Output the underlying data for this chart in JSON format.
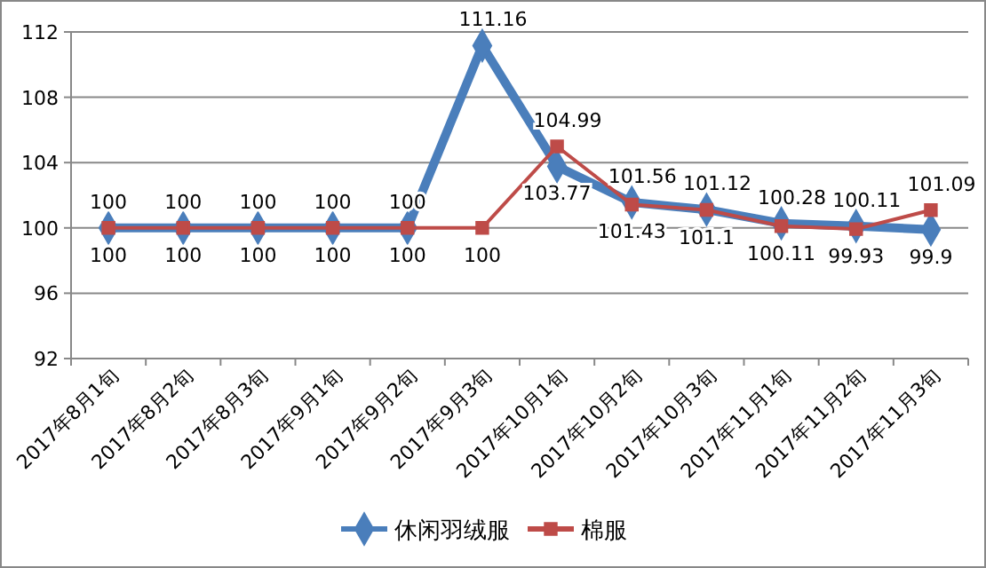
{
  "chart_data": {
    "type": "line",
    "categories": [
      "2017年8月1旬",
      "2017年8月2旬",
      "2017年8月3旬",
      "2017年9月1旬",
      "2017年9月2旬",
      "2017年9月3旬",
      "2017年10月1旬",
      "2017年10月2旬",
      "2017年10月3旬",
      "2017年11月1旬",
      "2017年11月2旬",
      "2017年11月3旬"
    ],
    "series": [
      {
        "name": "休闲羽绒服",
        "color": "#4a7ebb",
        "marker": "diamond",
        "values": [
          100,
          100,
          100,
          100,
          100,
          111.16,
          103.77,
          101.56,
          101.12,
          100.28,
          100.11,
          99.9
        ]
      },
      {
        "name": "棉服",
        "color": "#be4b48",
        "marker": "square",
        "values": [
          100,
          100,
          100,
          100,
          100,
          100,
          104.99,
          101.43,
          101.1,
          100.11,
          99.93,
          101.09
        ]
      }
    ],
    "ylim": [
      92,
      112
    ],
    "yticks": [
      92,
      96,
      100,
      104,
      108,
      112
    ],
    "grid": "y",
    "legend": "bottom",
    "data_labels": true,
    "line_style": "solid"
  }
}
